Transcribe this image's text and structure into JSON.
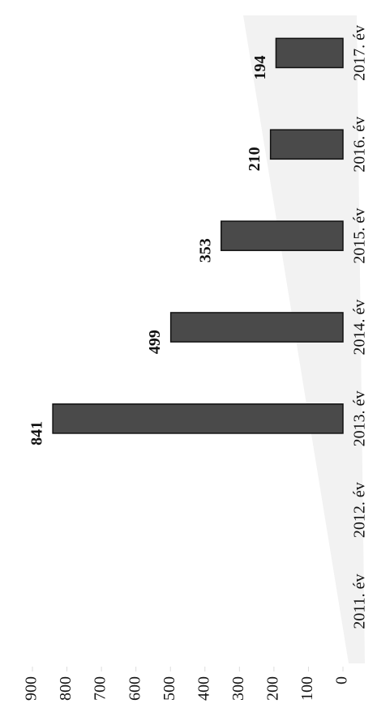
{
  "chart_data": {
    "type": "bar",
    "categories": [
      "2011. év",
      "2012. év",
      "2013. év",
      "2014. év",
      "2015. év",
      "2016. év",
      "2017. év"
    ],
    "values": [
      null,
      null,
      841,
      499,
      353,
      210,
      194
    ],
    "color": "#4a4a4a",
    "ylim": [
      0,
      900
    ],
    "yticks": [
      0,
      100,
      200,
      300,
      400,
      500,
      600,
      700,
      800,
      900
    ]
  }
}
